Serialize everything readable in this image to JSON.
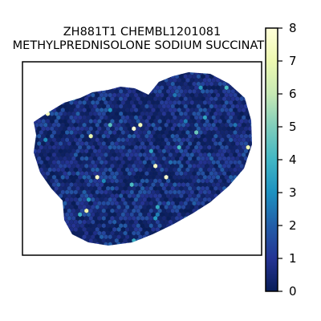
{
  "chart_data": {
    "type": "heatmap",
    "title_lines": [
      "ZH881T1 CHEMBL1201081",
      "METHYLPREDNISOLONE SODIUM SUCCINATE"
    ],
    "xlabel": "",
    "ylabel": "",
    "axis_ticks_visible": false,
    "grid": false,
    "colormap": "YlGnBu",
    "colorbar": {
      "placement": "right",
      "range": [
        0,
        8
      ],
      "ticks": [
        "0",
        "1",
        "2",
        "3",
        "4",
        "5",
        "6",
        "7",
        "8"
      ]
    },
    "typical_value_range": [
      0,
      2
    ],
    "max_value": 8
  }
}
